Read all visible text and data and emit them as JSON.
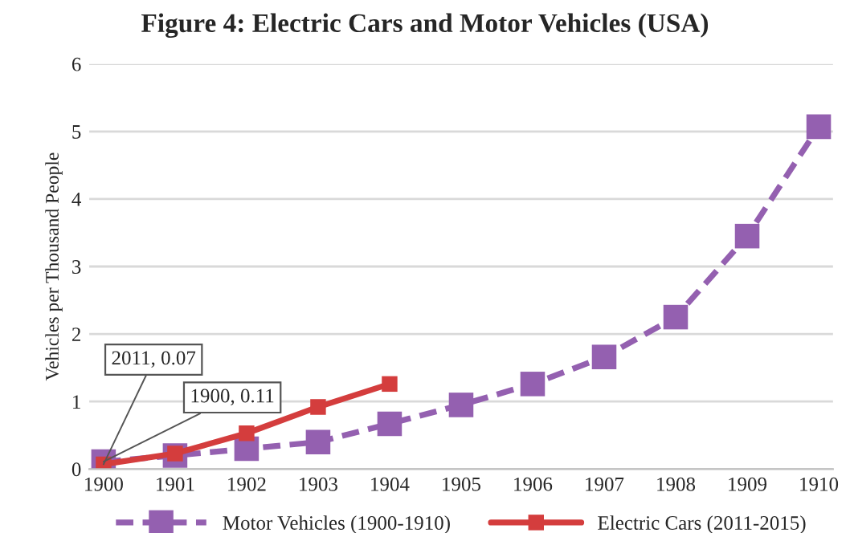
{
  "chart_data": {
    "type": "line",
    "title": "Figure 4: Electric Cars and Motor Vehicles (USA)",
    "ylabel": "Vehicles per Thousand People",
    "categories": [
      "1900",
      "1901",
      "1902",
      "1903",
      "1904",
      "1905",
      "1906",
      "1907",
      "1908",
      "1909",
      "1910"
    ],
    "series": [
      {
        "name": "Motor Vehicles (1900-1910)",
        "color": "#9460b0",
        "line_style": "dashed",
        "values": [
          0.11,
          0.2,
          0.3,
          0.4,
          0.67,
          0.95,
          1.26,
          1.66,
          2.25,
          3.45,
          5.07
        ]
      },
      {
        "name": "Electric Cars (2011-2015)",
        "color": "#d43d3d",
        "line_style": "solid",
        "values": [
          0.07,
          0.23,
          0.53,
          0.92,
          1.26,
          null,
          null,
          null,
          null,
          null,
          null
        ]
      }
    ],
    "annotations": [
      {
        "text": "2011, 0.07",
        "x": "1900",
        "y": 0.07
      },
      {
        "text": "1900, 0.11",
        "x": "1900",
        "y": 0.11
      }
    ],
    "ylim": [
      0,
      6
    ],
    "yticks": [
      0,
      1,
      2,
      3,
      4,
      5,
      6
    ],
    "grid": "y",
    "legend": "bottom",
    "marker": "square"
  }
}
